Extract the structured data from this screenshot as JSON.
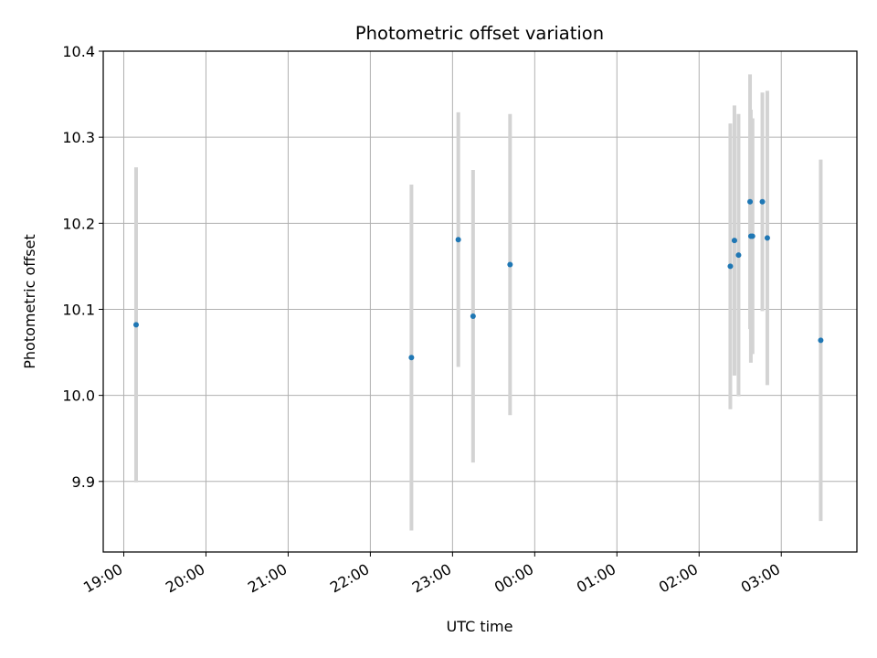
{
  "chart_data": {
    "type": "scatter",
    "title": "Photometric offset variation",
    "xlabel": "UTC time",
    "ylabel": "Photometric offset",
    "grid": true,
    "legend": "none",
    "x_ticks": [
      "19:00",
      "20:00",
      "21:00",
      "22:00",
      "23:00",
      "00:00",
      "01:00",
      "02:00",
      "03:00"
    ],
    "x_ticks_hours": [
      19,
      20,
      21,
      22,
      23,
      24,
      25,
      26,
      27
    ],
    "xlim_hours": [
      18.75,
      27.92
    ],
    "y_ticks": [
      "9.9",
      "10.0",
      "10.1",
      "10.2",
      "10.3",
      "10.4"
    ],
    "y_ticks_values": [
      9.9,
      10.0,
      10.1,
      10.2,
      10.3,
      10.4
    ],
    "ylim": [
      9.818,
      10.4
    ],
    "colors": {
      "marker": "#1f77b4",
      "errorbar": "#d3d3d3",
      "grid": "#b0b0b0"
    },
    "points": [
      {
        "t": "19:09",
        "h": 19.15,
        "y": 10.082,
        "err": 0.183
      },
      {
        "t": "22:30",
        "h": 22.5,
        "y": 10.044,
        "err": 0.201
      },
      {
        "t": "23:04",
        "h": 23.07,
        "y": 10.181,
        "err": 0.148
      },
      {
        "t": "23:15",
        "h": 23.25,
        "y": 10.092,
        "err": 0.17
      },
      {
        "t": "23:42",
        "h": 23.7,
        "y": 10.152,
        "err": 0.175
      },
      {
        "t": "02:23",
        "h": 26.38,
        "y": 10.15,
        "err": 0.166
      },
      {
        "t": "02:26",
        "h": 26.43,
        "y": 10.18,
        "err": 0.157
      },
      {
        "t": "02:29",
        "h": 26.48,
        "y": 10.163,
        "err": 0.164
      },
      {
        "t": "02:37",
        "h": 26.62,
        "y": 10.225,
        "err": 0.148
      },
      {
        "t": "02:38",
        "h": 26.63,
        "y": 10.185,
        "err": 0.147
      },
      {
        "t": "02:39",
        "h": 26.65,
        "y": 10.185,
        "err": 0.137
      },
      {
        "t": "02:46",
        "h": 26.77,
        "y": 10.225,
        "err": 0.127
      },
      {
        "t": "02:50",
        "h": 26.83,
        "y": 10.183,
        "err": 0.171
      },
      {
        "t": "03:29",
        "h": 27.48,
        "y": 10.064,
        "err": 0.21
      }
    ]
  }
}
